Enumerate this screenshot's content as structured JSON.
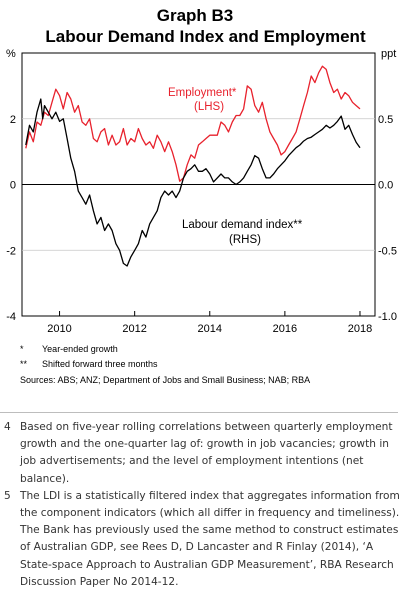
{
  "chart_data": {
    "type": "line",
    "title": "Graph B3",
    "subtitle": "Labour Demand Index and Employment",
    "left_axis": {
      "unit": "%",
      "ylim": [
        -4,
        4
      ],
      "ticks": [
        "-4",
        "-2",
        "0",
        "2"
      ]
    },
    "right_axis": {
      "unit": "ppt",
      "ylim": [
        -1.0,
        1.0
      ],
      "ticks": [
        "-1.0",
        "-0.5",
        "0.0",
        "0.5"
      ]
    },
    "x_ticks": [
      "2010",
      "2012",
      "2014",
      "2016",
      "2018"
    ],
    "xlim": [
      2009.5,
      2018.9
    ],
    "grid": "horizontal",
    "series": [
      {
        "name": "Employment*",
        "axis_label": "(LHS)",
        "color": "#e8222d",
        "axis": "left",
        "points": [
          [
            2009.6,
            1.1
          ],
          [
            2009.7,
            1.6
          ],
          [
            2009.8,
            1.3
          ],
          [
            2009.9,
            1.9
          ],
          [
            2010.0,
            1.8
          ],
          [
            2010.1,
            2.2
          ],
          [
            2010.2,
            2.1
          ],
          [
            2010.3,
            2.5
          ],
          [
            2010.4,
            2.9
          ],
          [
            2010.5,
            2.7
          ],
          [
            2010.6,
            2.3
          ],
          [
            2010.7,
            2.8
          ],
          [
            2010.8,
            2.6
          ],
          [
            2010.9,
            2.2
          ],
          [
            2011.0,
            2.4
          ],
          [
            2011.1,
            1.9
          ],
          [
            2011.2,
            1.8
          ],
          [
            2011.3,
            2.0
          ],
          [
            2011.4,
            1.4
          ],
          [
            2011.5,
            1.3
          ],
          [
            2011.6,
            1.6
          ],
          [
            2011.7,
            1.7
          ],
          [
            2011.8,
            1.2
          ],
          [
            2011.9,
            1.5
          ],
          [
            2012.0,
            1.2
          ],
          [
            2012.1,
            1.3
          ],
          [
            2012.2,
            1.7
          ],
          [
            2012.3,
            1.2
          ],
          [
            2012.4,
            1.4
          ],
          [
            2012.5,
            1.3
          ],
          [
            2012.6,
            1.7
          ],
          [
            2012.7,
            1.4
          ],
          [
            2012.8,
            1.2
          ],
          [
            2012.9,
            1.3
          ],
          [
            2013.0,
            1.1
          ],
          [
            2013.1,
            1.5
          ],
          [
            2013.2,
            1.3
          ],
          [
            2013.3,
            1.0
          ],
          [
            2013.4,
            1.3
          ],
          [
            2013.5,
            1.0
          ],
          [
            2013.6,
            0.6
          ],
          [
            2013.7,
            0.1
          ],
          [
            2013.8,
            0.2
          ],
          [
            2013.9,
            0.6
          ],
          [
            2014.0,
            0.9
          ],
          [
            2014.1,
            0.8
          ],
          [
            2014.2,
            1.2
          ],
          [
            2014.3,
            1.3
          ],
          [
            2014.4,
            1.4
          ],
          [
            2014.5,
            1.5
          ],
          [
            2014.6,
            1.5
          ],
          [
            2014.7,
            1.5
          ],
          [
            2014.8,
            1.9
          ],
          [
            2014.9,
            1.8
          ],
          [
            2015.0,
            1.6
          ],
          [
            2015.1,
            1.9
          ],
          [
            2015.2,
            2.1
          ],
          [
            2015.3,
            2.1
          ],
          [
            2015.4,
            2.3
          ],
          [
            2015.5,
            3.0
          ],
          [
            2015.6,
            2.9
          ],
          [
            2015.7,
            2.4
          ],
          [
            2015.8,
            2.2
          ],
          [
            2015.9,
            2.5
          ],
          [
            2016.0,
            2.0
          ],
          [
            2016.1,
            1.6
          ],
          [
            2016.2,
            1.4
          ],
          [
            2016.3,
            1.2
          ],
          [
            2016.4,
            0.9
          ],
          [
            2016.5,
            1.0
          ],
          [
            2016.6,
            1.2
          ],
          [
            2016.7,
            1.4
          ],
          [
            2016.8,
            1.6
          ],
          [
            2016.9,
            2.0
          ],
          [
            2017.0,
            2.4
          ],
          [
            2017.1,
            2.8
          ],
          [
            2017.2,
            3.3
          ],
          [
            2017.3,
            3.1
          ],
          [
            2017.4,
            3.4
          ],
          [
            2017.5,
            3.6
          ],
          [
            2017.6,
            3.5
          ],
          [
            2017.7,
            3.1
          ],
          [
            2017.8,
            2.8
          ],
          [
            2017.9,
            2.9
          ],
          [
            2018.0,
            2.6
          ],
          [
            2018.1,
            2.8
          ],
          [
            2018.2,
            2.7
          ],
          [
            2018.3,
            2.5
          ],
          [
            2018.4,
            2.4
          ],
          [
            2018.5,
            2.3
          ]
        ]
      },
      {
        "name": "Labour demand index**",
        "axis_label": "(RHS)",
        "color": "#000000",
        "axis": "right",
        "points": [
          [
            2009.6,
            0.3
          ],
          [
            2009.7,
            0.45
          ],
          [
            2009.8,
            0.4
          ],
          [
            2009.9,
            0.55
          ],
          [
            2010.0,
            0.65
          ],
          [
            2010.05,
            0.5
          ],
          [
            2010.1,
            0.6
          ],
          [
            2010.2,
            0.55
          ],
          [
            2010.3,
            0.5
          ],
          [
            2010.4,
            0.55
          ],
          [
            2010.5,
            0.48
          ],
          [
            2010.6,
            0.5
          ],
          [
            2010.7,
            0.35
          ],
          [
            2010.8,
            0.2
          ],
          [
            2010.9,
            0.1
          ],
          [
            2011.0,
            -0.05
          ],
          [
            2011.1,
            -0.1
          ],
          [
            2011.2,
            -0.15
          ],
          [
            2011.3,
            -0.08
          ],
          [
            2011.4,
            -0.2
          ],
          [
            2011.5,
            -0.3
          ],
          [
            2011.6,
            -0.25
          ],
          [
            2011.7,
            -0.35
          ],
          [
            2011.8,
            -0.3
          ],
          [
            2011.9,
            -0.35
          ],
          [
            2012.0,
            -0.45
          ],
          [
            2012.1,
            -0.5
          ],
          [
            2012.2,
            -0.6
          ],
          [
            2012.3,
            -0.62
          ],
          [
            2012.4,
            -0.55
          ],
          [
            2012.5,
            -0.5
          ],
          [
            2012.6,
            -0.45
          ],
          [
            2012.7,
            -0.35
          ],
          [
            2012.8,
            -0.4
          ],
          [
            2012.9,
            -0.3
          ],
          [
            2013.0,
            -0.25
          ],
          [
            2013.1,
            -0.2
          ],
          [
            2013.2,
            -0.1
          ],
          [
            2013.3,
            -0.05
          ],
          [
            2013.4,
            -0.08
          ],
          [
            2013.5,
            -0.05
          ],
          [
            2013.6,
            -0.1
          ],
          [
            2013.7,
            -0.05
          ],
          [
            2013.8,
            0.05
          ],
          [
            2013.9,
            0.1
          ],
          [
            2014.0,
            0.12
          ],
          [
            2014.1,
            0.15
          ],
          [
            2014.2,
            0.1
          ],
          [
            2014.3,
            0.1
          ],
          [
            2014.4,
            0.12
          ],
          [
            2014.5,
            0.08
          ],
          [
            2014.6,
            0.02
          ],
          [
            2014.7,
            0.05
          ],
          [
            2014.8,
            0.08
          ],
          [
            2014.9,
            0.05
          ],
          [
            2015.0,
            0.05
          ],
          [
            2015.1,
            0.02
          ],
          [
            2015.2,
            0.0
          ],
          [
            2015.3,
            0.02
          ],
          [
            2015.4,
            0.05
          ],
          [
            2015.5,
            0.1
          ],
          [
            2015.6,
            0.15
          ],
          [
            2015.7,
            0.22
          ],
          [
            2015.8,
            0.2
          ],
          [
            2015.9,
            0.12
          ],
          [
            2016.0,
            0.05
          ],
          [
            2016.1,
            0.05
          ],
          [
            2016.2,
            0.08
          ],
          [
            2016.3,
            0.12
          ],
          [
            2016.4,
            0.15
          ],
          [
            2016.5,
            0.18
          ],
          [
            2016.6,
            0.22
          ],
          [
            2016.7,
            0.25
          ],
          [
            2016.8,
            0.28
          ],
          [
            2016.9,
            0.3
          ],
          [
            2017.0,
            0.33
          ],
          [
            2017.1,
            0.35
          ],
          [
            2017.2,
            0.36
          ],
          [
            2017.3,
            0.38
          ],
          [
            2017.4,
            0.4
          ],
          [
            2017.5,
            0.42
          ],
          [
            2017.6,
            0.45
          ],
          [
            2017.7,
            0.43
          ],
          [
            2017.8,
            0.45
          ],
          [
            2017.9,
            0.48
          ],
          [
            2018.0,
            0.52
          ],
          [
            2018.1,
            0.42
          ],
          [
            2018.2,
            0.45
          ],
          [
            2018.3,
            0.38
          ],
          [
            2018.4,
            0.32
          ],
          [
            2018.5,
            0.28
          ]
        ]
      }
    ]
  },
  "notes": [
    {
      "symbol": "*",
      "text": "Year-ended growth"
    },
    {
      "symbol": "**",
      "text": "Shifted forward three months"
    }
  ],
  "sources": "Sources: ABS; ANZ; Department of Jobs and Small Business; NAB; RBA",
  "footnotes": [
    {
      "num": "4",
      "text": "Based on five-year rolling correlations between quarterly employment growth and the one-quarter lag of: growth in job vacancies; growth in job advertisements; and the level of employment intentions (net balance)."
    },
    {
      "num": "5",
      "text": "The LDI is a statistically filtered index that aggregates information from the component indicators (which all differ in frequency and timeliness). The Bank has previously used the same method to construct estimates of Australian GDP, see Rees D, D Lancaster and R Finlay (2014), ‘A State-space Approach to Australian GDP Measurement’, RBA Research Discussion Paper No 2014-12."
    }
  ]
}
